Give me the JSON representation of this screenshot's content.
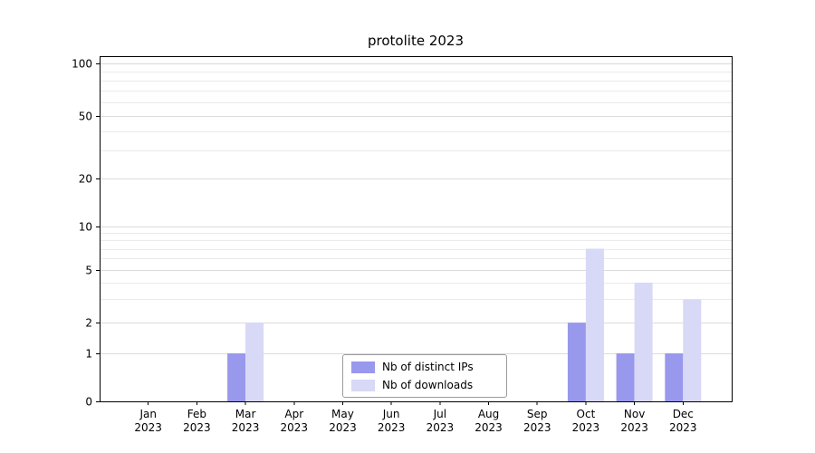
{
  "title": "protolite 2023",
  "chart_data": {
    "type": "bar",
    "title": "protolite 2023",
    "categories": [
      "Jan 2023",
      "Feb 2023",
      "Mar 2023",
      "Apr 2023",
      "May 2023",
      "Jun 2023",
      "Jul 2023",
      "Aug 2023",
      "Sep 2023",
      "Oct 2023",
      "Nov 2023",
      "Dec 2023"
    ],
    "series": [
      {
        "name": "Nb of distinct IPs",
        "color": "#9898ec",
        "values": [
          0,
          0,
          1,
          0,
          0,
          0,
          0,
          0,
          0,
          2,
          1,
          1
        ]
      },
      {
        "name": "Nb of downloads",
        "color": "#d8d8f7",
        "values": [
          0,
          0,
          2,
          0,
          0,
          0,
          0,
          0,
          0,
          7,
          4,
          3
        ]
      }
    ],
    "y_ticks": [
      0,
      1,
      2,
      5,
      10,
      20,
      50,
      100
    ],
    "y_minor_gridlines": [
      3,
      4,
      6,
      7,
      8,
      9,
      30,
      40,
      60,
      70,
      80,
      90
    ],
    "yscale": "log-like (symlog)",
    "ylim": [
      0,
      105
    ],
    "xlabel": "",
    "ylabel": "",
    "grid": "horizontal",
    "legend_position": "lower center"
  },
  "legend": {
    "items": [
      {
        "label": "Nb of distinct IPs",
        "color": "#9898ec"
      },
      {
        "label": "Nb of downloads",
        "color": "#d8d8f7"
      }
    ]
  },
  "colors": {
    "grid_major": "#dbdbdb",
    "grid_minor": "#eaeaea",
    "axis": "#000000",
    "background": "#ffffff"
  }
}
